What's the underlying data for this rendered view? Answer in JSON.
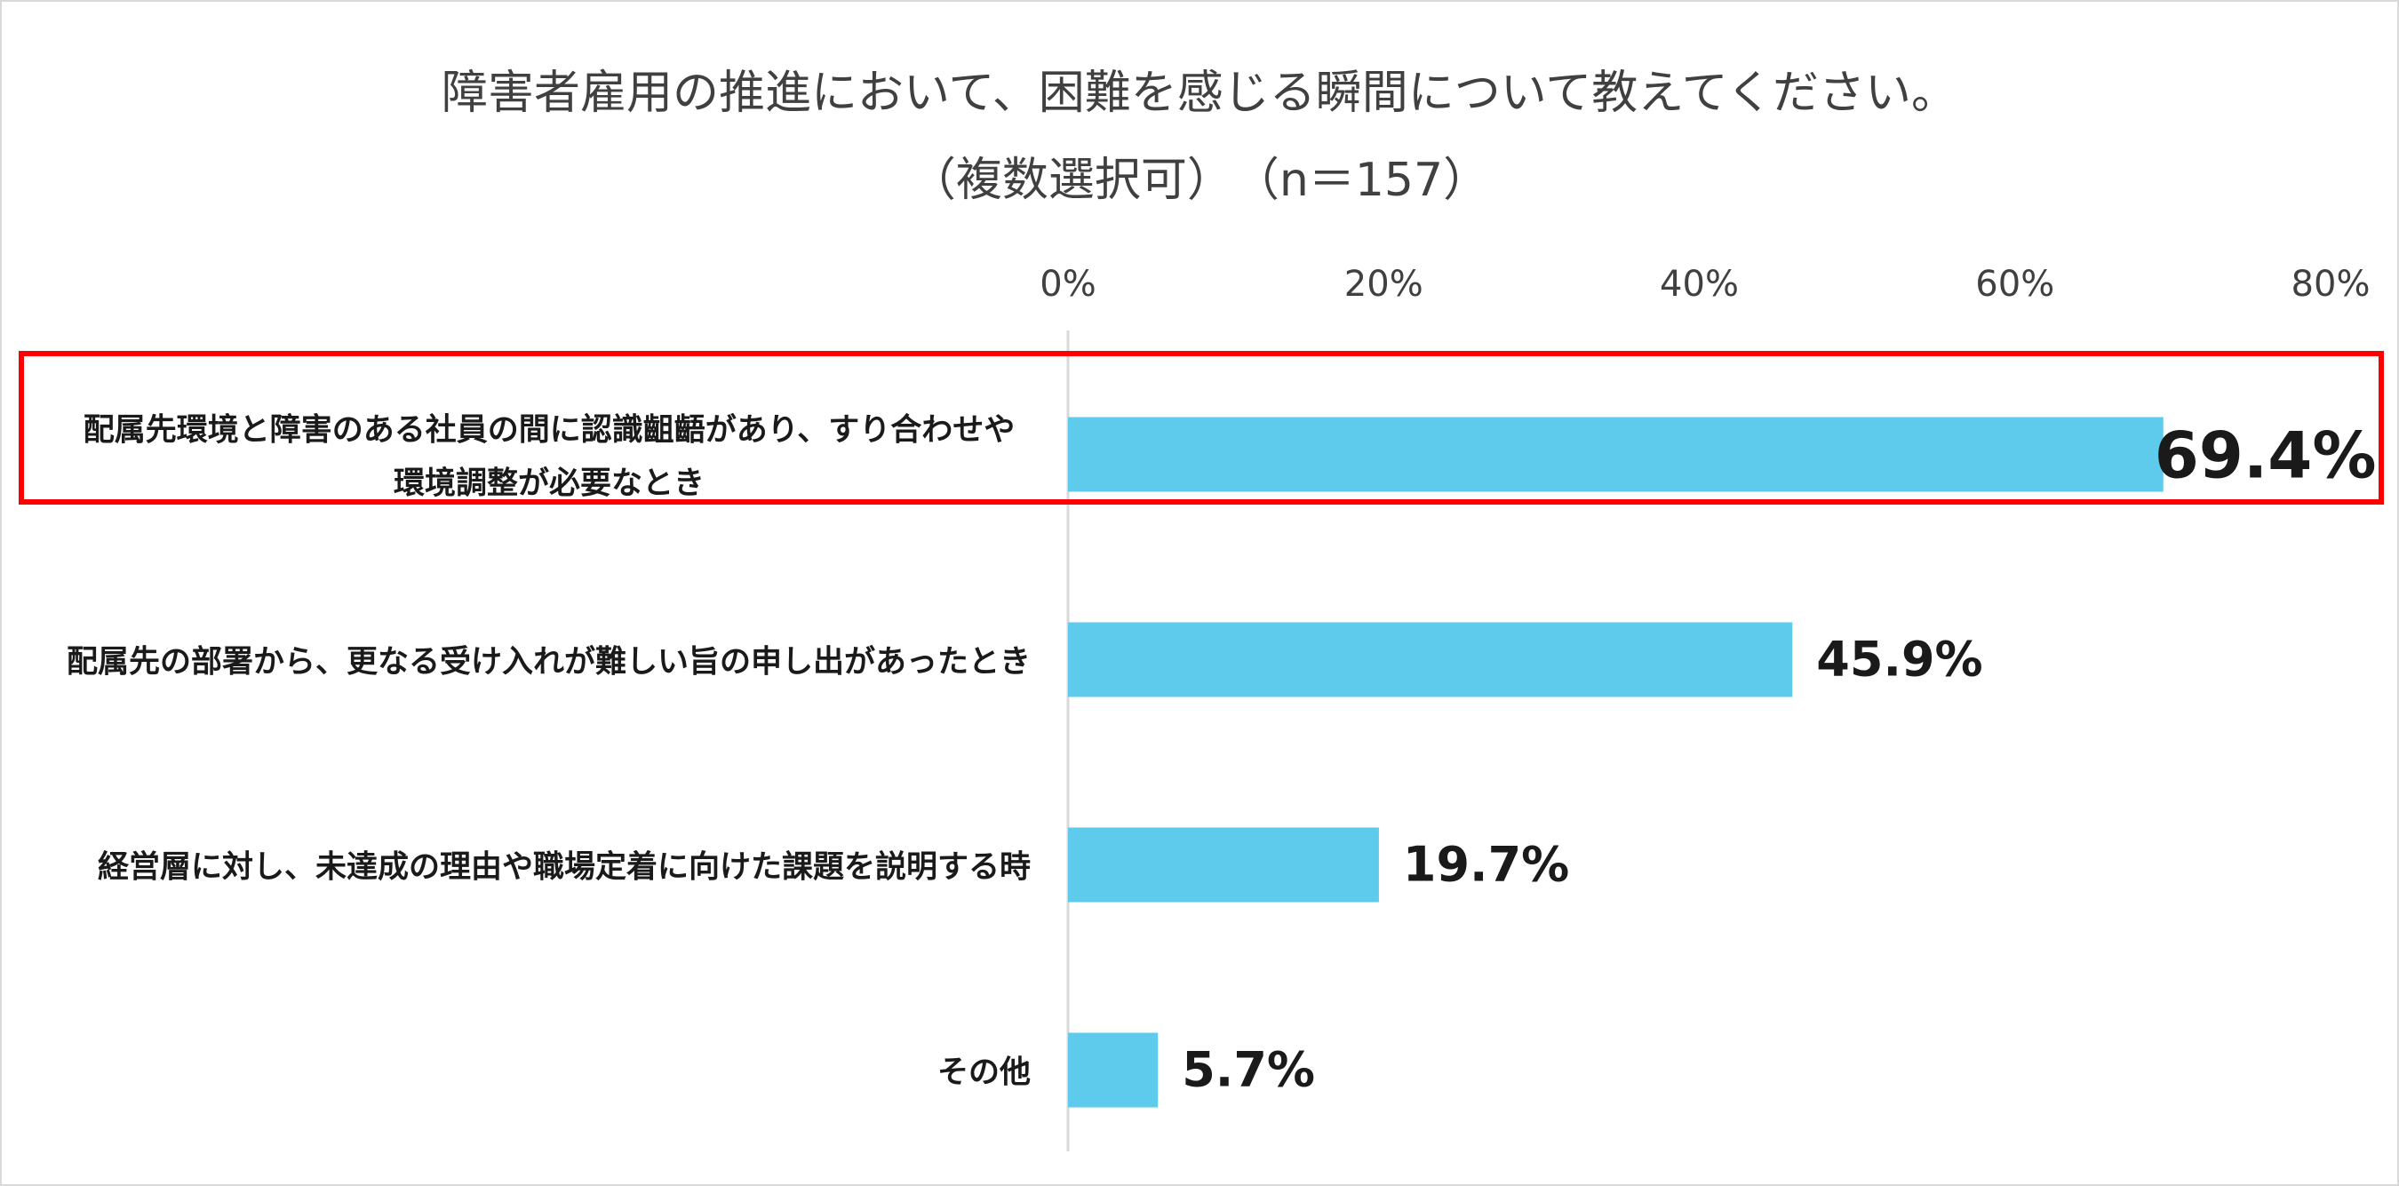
{
  "chart_data": {
    "type": "bar",
    "orientation": "horizontal",
    "title": "障害者雇用の推進において、困難を感じる瞬間について教えてください。",
    "subtitle": "（複数選択可）　（n＝157）",
    "categories": [
      [
        "配属先環境と障害のある社員の間に認識齟齬があり、すり合わせや",
        "環境調整が必要なとき"
      ],
      [
        "配属先の部署から、更なる受け入れが難しい旨の申し出があったとき"
      ],
      [
        "経営層に対し、未達成の理由や職場定着に向けた課題を説明する時"
      ],
      [
        "その他"
      ]
    ],
    "values": [
      69.4,
      45.9,
      19.7,
      5.7
    ],
    "value_labels": [
      "69.4%",
      "45.9%",
      "19.7%",
      "5.7%"
    ],
    "xlim": [
      0,
      80
    ],
    "xticks": [
      0,
      20,
      40,
      60,
      80
    ],
    "xtick_labels": [
      "0%",
      "20%",
      "40%",
      "60%",
      "80%"
    ],
    "axis_position": "top",
    "grid": false,
    "highlighted_category_index": 0,
    "colors": {
      "bar": "#5ecbec",
      "highlight_box": "#ff0000",
      "axis_line": "#d9d9d9",
      "text": "#404040",
      "label_text": "#1a1a1a",
      "frame": "#d9d9d9"
    }
  }
}
